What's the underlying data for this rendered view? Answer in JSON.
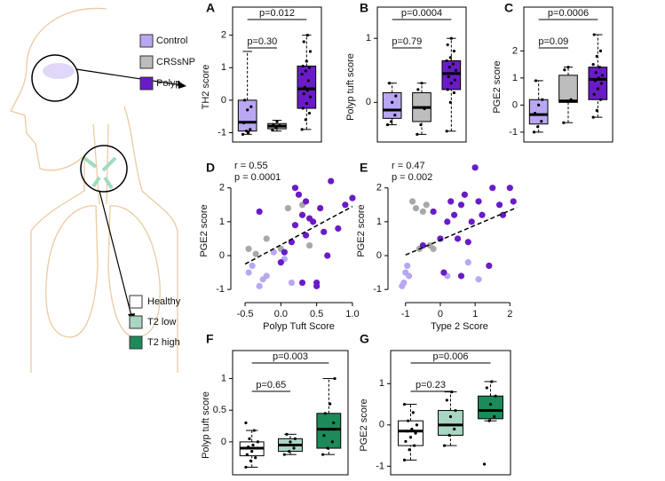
{
  "legend_top": [
    {
      "label": "Control",
      "color": "#b9a7f3"
    },
    {
      "label": "CRSsNP",
      "color": "#bdbdbd"
    },
    {
      "label": "Polyp",
      "color": "#6a1bc7"
    }
  ],
  "legend_bottom": [
    {
      "label": "Healthy",
      "color": "#ffffff"
    },
    {
      "label": "T2 low",
      "color": "#a9d6c2"
    },
    {
      "label": "T2 high",
      "color": "#1d8a5a"
    }
  ],
  "chart_data": [
    {
      "panel": "A",
      "type": "box",
      "ylabel": "TH2 score",
      "ylim": [
        -1.15,
        2.1
      ],
      "yticks": [
        -1,
        0,
        1,
        2
      ],
      "groups": [
        {
          "color": "#b9a7f3",
          "whislo": -1.05,
          "q1": -0.95,
          "median": -0.68,
          "q3": 0.0,
          "whishi": 1.5,
          "points": [
            -1.05,
            -0.95,
            -0.9,
            -0.7,
            -0.3,
            -0.2,
            0.0,
            -1.0
          ]
        },
        {
          "color": "#bdbdbd",
          "whislo": -0.95,
          "q1": -0.88,
          "median": -0.8,
          "q3": -0.72,
          "whishi": -0.62,
          "points": [
            -0.92,
            -0.85,
            -0.78,
            -0.75,
            -0.65
          ]
        },
        {
          "color": "#6a1bc7",
          "whislo": -0.9,
          "q1": -0.25,
          "median": 0.35,
          "q3": 1.05,
          "whishi": 2.0,
          "points": [
            -0.9,
            -0.6,
            -0.4,
            -0.25,
            -0.1,
            0.1,
            0.2,
            0.3,
            0.35,
            0.4,
            0.6,
            0.8,
            0.9,
            1.0,
            1.05,
            1.2,
            1.5,
            1.8,
            2.0
          ]
        }
      ],
      "comparisons": [
        {
          "groups": [
            0,
            1
          ],
          "label": "p=0.30"
        },
        {
          "groups": [
            0,
            2
          ],
          "label": "p=0.012"
        }
      ]
    },
    {
      "panel": "B",
      "type": "box",
      "ylabel": "Polyp tuft score",
      "ylim": [
        -0.55,
        1.1
      ],
      "yticks": [
        0,
        1
      ],
      "groups": [
        {
          "color": "#b9a7f3",
          "whislo": -0.35,
          "q1": -0.25,
          "median": -0.12,
          "q3": 0.15,
          "whishi": 0.3,
          "points": [
            -0.35,
            -0.3,
            -0.2,
            -0.12,
            0.0,
            0.1,
            0.3
          ]
        },
        {
          "color": "#bdbdbd",
          "whislo": -0.5,
          "q1": -0.3,
          "median": -0.08,
          "q3": 0.15,
          "whishi": 0.3,
          "points": [
            -0.5,
            -0.35,
            -0.1,
            0.2,
            0.3
          ]
        },
        {
          "color": "#6a1bc7",
          "whislo": -0.45,
          "q1": 0.2,
          "median": 0.45,
          "q3": 0.65,
          "whishi": 1.0,
          "points": [
            -0.45,
            0.0,
            0.15,
            0.2,
            0.3,
            0.35,
            0.4,
            0.45,
            0.5,
            0.55,
            0.6,
            0.65,
            0.7,
            0.8,
            0.9,
            1.0
          ]
        }
      ],
      "comparisons": [
        {
          "groups": [
            0,
            1
          ],
          "label": "p=0.79"
        },
        {
          "groups": [
            0,
            2
          ],
          "label": "p=0.0004"
        }
      ]
    },
    {
      "panel": "C",
      "type": "box",
      "ylabel": "PGE2 score",
      "ylim": [
        -1.2,
        2.7
      ],
      "yticks": [
        -1,
        0,
        1,
        2
      ],
      "groups": [
        {
          "color": "#b9a7f3",
          "whislo": -1.0,
          "q1": -0.7,
          "median": -0.35,
          "q3": 0.2,
          "whishi": 0.9,
          "points": [
            -1.0,
            -0.8,
            -0.6,
            -0.3,
            0.0,
            0.2,
            0.9
          ]
        },
        {
          "color": "#bdbdbd",
          "whislo": -0.65,
          "q1": 0.1,
          "median": 0.15,
          "q3": 1.1,
          "whishi": 1.4,
          "points": [
            -0.65,
            0.15,
            0.2,
            1.3,
            1.4
          ]
        },
        {
          "color": "#6a1bc7",
          "whislo": -0.45,
          "q1": 0.2,
          "median": 0.95,
          "q3": 1.4,
          "whishi": 2.6,
          "points": [
            -0.45,
            -0.2,
            0.2,
            0.4,
            0.6,
            0.8,
            0.9,
            1.0,
            1.1,
            1.2,
            1.4,
            1.5,
            1.8,
            2.0,
            2.6
          ]
        }
      ],
      "comparisons": [
        {
          "groups": [
            0,
            1
          ],
          "label": "p=0.09"
        },
        {
          "groups": [
            0,
            2
          ],
          "label": "p=0.0006"
        }
      ]
    },
    {
      "panel": "D",
      "type": "scatter",
      "xlabel": "Polyp Tuft Score",
      "ylabel": "PGE2 score",
      "xlim": [
        -0.6,
        1.1
      ],
      "ylim": [
        -1.1,
        2.7
      ],
      "xticks": [
        -0.5,
        {
          "value": 0,
          "label": "0.0"
        },
        0.5,
        {
          "value": 1,
          "label": "1.0"
        }
      ],
      "yticks": [
        -1,
        0,
        1,
        2
      ],
      "annotations": [
        "r = 0.55",
        "p = 0.0001"
      ],
      "series": [
        {
          "color": "#b9a7f3",
          "x": [
            -0.45,
            -0.4,
            -0.3,
            -0.25,
            -0.2,
            0.15,
            -0.1,
            0.05
          ],
          "y": [
            -0.5,
            -0.3,
            -0.9,
            -0.7,
            -0.6,
            -0.8,
            0.1,
            -0.1
          ]
        },
        {
          "color": "#a8a8a8",
          "x": [
            -0.45,
            -0.35,
            -0.2,
            0.0,
            0.1,
            0.3,
            0.4
          ],
          "y": [
            0.2,
            0.05,
            0.5,
            0.2,
            1.4,
            1.5,
            0.3
          ]
        },
        {
          "color": "#6a1bc7",
          "x": [
            -0.3,
            0.0,
            0.05,
            0.15,
            0.2,
            0.25,
            0.3,
            0.35,
            0.4,
            0.45,
            0.5,
            0.55,
            0.6,
            0.65,
            0.7,
            0.8,
            0.9,
            1.0,
            0.5,
            0.3,
            0.35,
            0.2
          ],
          "y": [
            1.3,
            -0.2,
            0.1,
            0.4,
            2.0,
            1.8,
            1.2,
            0.6,
            1.1,
            1.0,
            -0.8,
            1.4,
            0.7,
            0.0,
            2.2,
            0.8,
            1.5,
            1.7,
            -0.9,
            -0.8,
            1.6,
            0.9
          ]
        }
      ],
      "fit": {
        "x": [
          -0.5,
          1.0
        ],
        "y": [
          -0.25,
          1.45
        ]
      }
    },
    {
      "panel": "E",
      "type": "scatter",
      "xlabel": "Type 2 Score",
      "ylabel": "PGE2 score",
      "xlim": [
        -1.3,
        2.4
      ],
      "ylim": [
        -1.1,
        2.7
      ],
      "xticks": [
        -1,
        0,
        1,
        2
      ],
      "yticks": [
        -1,
        0,
        1,
        2
      ],
      "annotations": [
        "r = 0.47",
        "p = 0.002"
      ],
      "series": [
        {
          "color": "#b9a7f3",
          "x": [
            -1.1,
            -1.05,
            -1.0,
            -0.95,
            -0.9,
            0.2,
            0.8,
            1.1
          ],
          "y": [
            -0.9,
            -0.8,
            -0.5,
            -0.3,
            -0.6,
            -0.6,
            -0.2,
            -0.7
          ]
        },
        {
          "color": "#a8a8a8",
          "x": [
            -0.8,
            -0.7,
            -0.5,
            -0.4,
            -0.6,
            -0.3,
            -0.2
          ],
          "y": [
            1.6,
            1.4,
            1.3,
            1.5,
            0.2,
            0.3,
            0.2
          ]
        },
        {
          "color": "#6a1bc7",
          "x": [
            -0.5,
            -0.2,
            0.0,
            0.2,
            0.3,
            0.4,
            0.5,
            0.6,
            0.7,
            0.8,
            0.9,
            1.0,
            1.1,
            1.2,
            1.4,
            1.5,
            1.7,
            1.8,
            2.0,
            2.1,
            0.1,
            0.6
          ],
          "y": [
            0.3,
            1.3,
            0.5,
            1.0,
            1.6,
            1.2,
            0.5,
            1.5,
            1.8,
            0.4,
            1.0,
            2.6,
            1.6,
            1.2,
            -0.3,
            2.0,
            1.5,
            1.2,
            2.0,
            1.6,
            -0.5,
            -0.6
          ]
        }
      ],
      "fit": {
        "x": [
          -1,
          2.2
        ],
        "y": [
          0.02,
          1.42
        ]
      }
    },
    {
      "panel": "F",
      "type": "box",
      "ylabel": "Polyp tuft score",
      "ylim": [
        -0.45,
        1.05
      ],
      "yticks": [
        0,
        0.5,
        1
      ],
      "groups": [
        {
          "color": "#ffffff",
          "whislo": -0.4,
          "q1": -0.22,
          "median": -0.1,
          "q3": 0.0,
          "whishi": 0.18,
          "points": [
            -0.4,
            -0.3,
            -0.25,
            -0.2,
            -0.15,
            -0.1,
            -0.08,
            -0.05,
            0.0,
            0.05,
            0.18,
            0.3
          ]
        },
        {
          "color": "#a9d6c2",
          "whislo": -0.2,
          "q1": -0.15,
          "median": -0.05,
          "q3": 0.05,
          "whishi": 0.12,
          "points": [
            -0.2,
            -0.15,
            -0.1,
            -0.05,
            0.0,
            0.05,
            0.12
          ]
        },
        {
          "color": "#1d8a5a",
          "whislo": -0.2,
          "q1": -0.1,
          "median": 0.2,
          "q3": 0.45,
          "whishi": 1.0,
          "points": [
            -0.2,
            -0.1,
            0.0,
            0.1,
            0.2,
            0.3,
            0.45,
            0.6,
            1.0
          ]
        }
      ],
      "comparisons": [
        {
          "groups": [
            0,
            1
          ],
          "label": "p=0.65"
        },
        {
          "groups": [
            0,
            2
          ],
          "label": "p=0.003"
        }
      ]
    },
    {
      "panel": "G",
      "type": "box",
      "ylabel": "PGE2 score",
      "ylim": [
        -1.1,
        1.2
      ],
      "yticks": [
        -1,
        0,
        1
      ],
      "groups": [
        {
          "color": "#ffffff",
          "whislo": -0.85,
          "q1": -0.5,
          "median": -0.15,
          "q3": 0.1,
          "whishi": 0.5,
          "points": [
            -0.85,
            -0.6,
            -0.5,
            -0.4,
            -0.3,
            -0.2,
            -0.15,
            -0.1,
            0.0,
            0.1,
            0.3,
            0.5
          ]
        },
        {
          "color": "#a9d6c2",
          "whislo": -0.5,
          "q1": -0.25,
          "median": 0.0,
          "q3": 0.35,
          "whishi": 0.8,
          "points": [
            -0.5,
            -0.25,
            -0.1,
            0.0,
            0.2,
            0.35,
            0.6,
            0.8
          ]
        },
        {
          "color": "#1d8a5a",
          "whislo": 0.1,
          "q1": 0.15,
          "median": 0.35,
          "q3": 0.7,
          "whishi": 1.05,
          "points": [
            -0.95,
            0.1,
            0.2,
            0.35,
            0.5,
            0.7,
            0.9,
            1.05
          ]
        }
      ],
      "comparisons": [
        {
          "groups": [
            0,
            1
          ],
          "label": "p=0.23"
        },
        {
          "groups": [
            0,
            2
          ],
          "label": "p=0.006"
        }
      ]
    }
  ]
}
